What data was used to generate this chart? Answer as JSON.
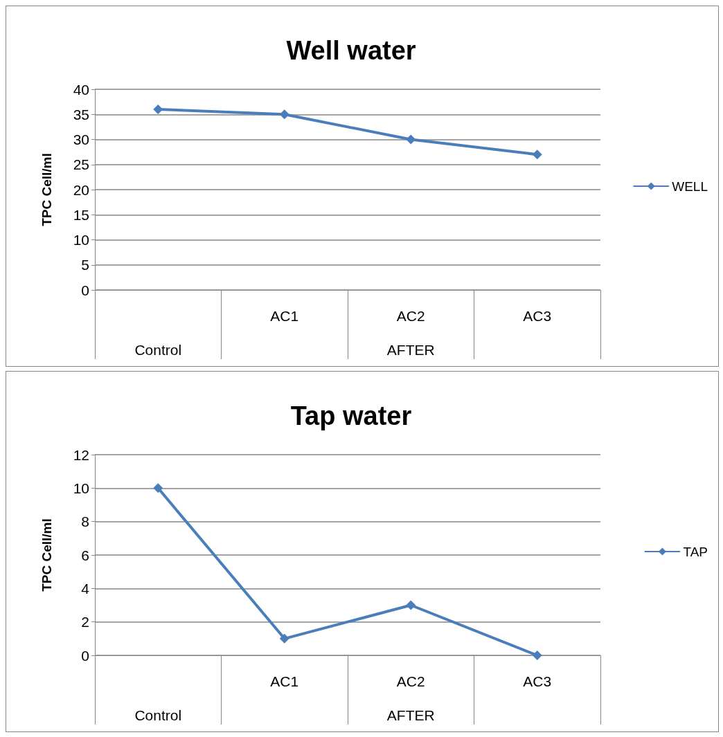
{
  "chart_data": [
    {
      "type": "line",
      "title": "Well water",
      "ylabel": "TPC Cell/ml",
      "categories": [
        null,
        "AC1",
        "AC2",
        "AC3"
      ],
      "annotations": [
        "Control",
        "AFTER"
      ],
      "series": [
        {
          "name": "WELL",
          "color": "#4a7ebb",
          "values": [
            36,
            35,
            30,
            27
          ]
        }
      ],
      "ylim": [
        0,
        40
      ],
      "yticks": [
        0,
        5,
        10,
        15,
        20,
        25,
        30,
        35,
        40
      ],
      "grid": "y",
      "legend": "right",
      "marker": "diamond",
      "line_style": "solid"
    },
    {
      "type": "line",
      "title": "Tap water",
      "ylabel": "TPC Cell/ml",
      "categories": [
        null,
        "AC1",
        "AC2",
        "AC3"
      ],
      "annotations": [
        "Control",
        "AFTER"
      ],
      "series": [
        {
          "name": "TAP",
          "color": "#4a7ebb",
          "values": [
            10,
            1,
            3,
            0
          ]
        }
      ],
      "ylim": [
        0,
        12
      ],
      "yticks": [
        0,
        2,
        4,
        6,
        8,
        10,
        12
      ],
      "grid": "y",
      "legend": "right",
      "marker": "diamond",
      "line_style": "solid"
    }
  ]
}
